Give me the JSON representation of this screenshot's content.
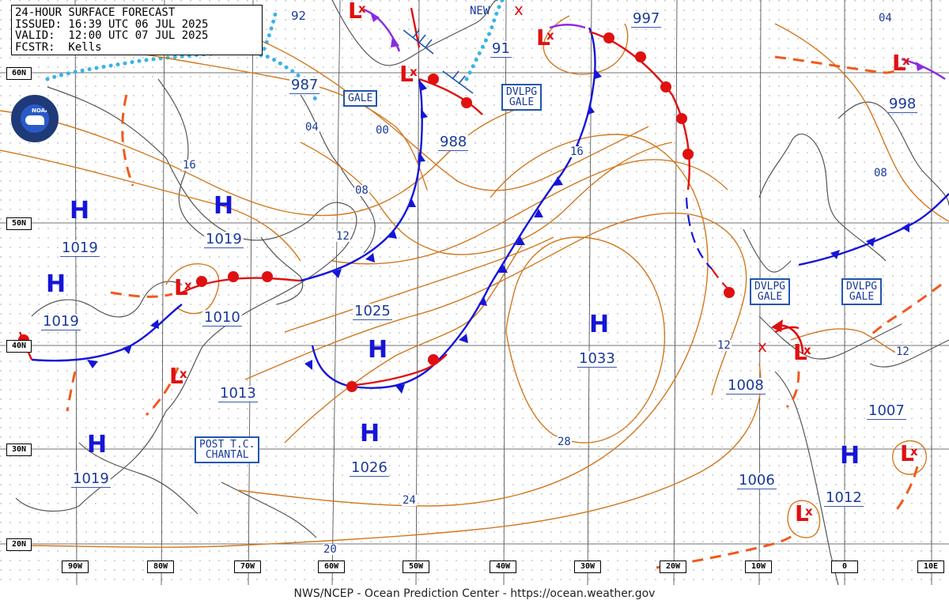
{
  "header": {
    "line1": "24-HOUR SURFACE FORECAST",
    "line2": "ISSUED: 16:39 UTC 06 JUL 2025",
    "line3": "VALID:  12:00 UTC 07 JUL 2025",
    "line4": "FCSTR:  Kells"
  },
  "footer": "NWS/NCEP - Ocean Prediction Center - https://ocean.weather.gov",
  "logo_text": "NOAA",
  "latitudes": [
    "60N",
    "50N",
    "40N",
    "30N",
    "20N"
  ],
  "longitudes": [
    "90W",
    "80W",
    "70W",
    "60W",
    "50W",
    "40W",
    "30W",
    "20W",
    "10W",
    "0",
    "10E"
  ],
  "highs": {
    "symbol": "H",
    "items": [
      {
        "name": "h1",
        "pressure": "1019"
      },
      {
        "name": "h2",
        "pressure": "1019"
      },
      {
        "name": "h3",
        "pressure": "1019"
      },
      {
        "name": "h4",
        "pressure": "1019"
      },
      {
        "name": "h5",
        "pressure": "1025"
      },
      {
        "name": "h6",
        "pressure": "1026"
      },
      {
        "name": "h7",
        "pressure": "1033"
      },
      {
        "name": "h8",
        "pressure": "1012"
      }
    ]
  },
  "lows": {
    "symbol": "L",
    "mark": "x",
    "pressures": [
      "987",
      "988",
      "997",
      "998",
      "1010",
      "1013",
      "1008",
      "1007",
      "1006"
    ],
    "partial_pressures": [
      "92",
      "91"
    ]
  },
  "isobar_labels": [
    "04",
    "00",
    "16",
    "08",
    "12",
    "16",
    "08",
    "12",
    "12",
    "28",
    "24",
    "20",
    "04"
  ],
  "warnings": [
    {
      "line1": "GALE",
      "line2": ""
    },
    {
      "line1": "DVLPG",
      "line2": "GALE"
    },
    {
      "line1": "DVLPG",
      "line2": "GALE"
    },
    {
      "line1": "DVLPG",
      "line2": "GALE"
    },
    {
      "line1": "POST T.C.",
      "line2": "CHANTAL"
    }
  ],
  "new_label": "NEW",
  "colors": {
    "isobar": "#d2781e",
    "cold_front": "#1515d8",
    "warm_front": "#e01010",
    "occluded_front": "#8a2be2",
    "trough": "#f05a1e",
    "ice_edge": "#39b4e6",
    "coast": "#555555",
    "label_text": "#1a3a9a"
  }
}
